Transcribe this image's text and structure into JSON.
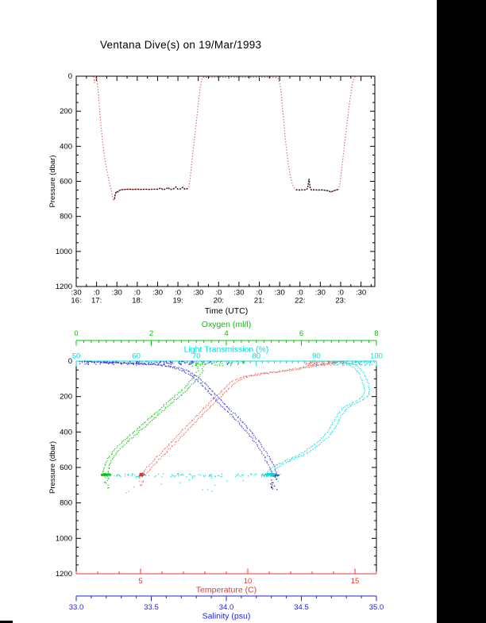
{
  "page": {
    "title": "Ventana Dive(s) on 19/Mar/1993"
  },
  "chart_data": [
    {
      "id": "dive-depth-vs-time",
      "type": "line",
      "title": "Ventana Dive(s) on 19/Mar/1993",
      "xlabel": "Time (UTC)",
      "ylabel": "Pressure (dbar)",
      "x_hours": [
        16.5,
        23.84
      ],
      "x_major_step_hours": 0.5,
      "x_minor_step_hours": 0.25,
      "half_hour_tick_label": ":30",
      "hour_tick_label": ":0",
      "hour_row_labels": [
        [
          16.5,
          "16:"
        ],
        [
          17,
          "17:"
        ],
        [
          18,
          "18:"
        ],
        [
          19,
          "19:"
        ],
        [
          20,
          "20:"
        ],
        [
          21,
          "21:"
        ],
        [
          22,
          "22:"
        ],
        [
          23,
          "23:"
        ]
      ],
      "ylim": [
        0,
        1200
      ],
      "y_major_step": 200,
      "y_minor_step": 50,
      "y_tick_labels": [
        "0",
        "200",
        "400",
        "600",
        "800",
        "1000",
        "1200"
      ],
      "line_color": "#e06868",
      "dark_color": "#2a0c0c",
      "profile_time_pressure": [
        [
          16.93,
          2
        ],
        [
          16.95,
          38
        ],
        [
          16.97,
          12
        ],
        [
          17.0,
          4
        ],
        [
          17.03,
          60
        ],
        [
          17.06,
          150
        ],
        [
          17.1,
          260
        ],
        [
          17.15,
          380
        ],
        [
          17.2,
          470
        ],
        [
          17.26,
          545
        ],
        [
          17.31,
          600
        ],
        [
          17.36,
          650
        ],
        [
          17.4,
          695
        ],
        [
          17.42,
          712
        ],
        [
          17.44,
          700
        ],
        [
          17.46,
          672
        ],
        [
          17.49,
          658
        ],
        [
          17.53,
          660
        ],
        [
          17.56,
          652
        ],
        [
          17.6,
          648
        ],
        [
          17.7,
          646
        ],
        [
          17.8,
          645
        ],
        [
          17.9,
          646
        ],
        [
          18.0,
          645
        ],
        [
          18.1,
          646
        ],
        [
          18.2,
          645
        ],
        [
          18.3,
          646
        ],
        [
          18.4,
          645
        ],
        [
          18.5,
          645
        ],
        [
          18.58,
          638
        ],
        [
          18.62,
          646
        ],
        [
          18.7,
          645
        ],
        [
          18.76,
          635
        ],
        [
          18.8,
          646
        ],
        [
          18.88,
          645
        ],
        [
          18.95,
          632
        ],
        [
          19.0,
          645
        ],
        [
          19.06,
          644
        ],
        [
          19.12,
          634
        ],
        [
          19.17,
          645
        ],
        [
          19.22,
          643
        ],
        [
          19.26,
          640
        ],
        [
          19.3,
          585
        ],
        [
          19.35,
          470
        ],
        [
          19.42,
          330
        ],
        [
          19.49,
          180
        ],
        [
          19.55,
          60
        ],
        [
          19.59,
          14
        ],
        [
          19.62,
          6
        ],
        [
          19.8,
          7
        ],
        [
          20.0,
          6
        ],
        [
          20.2,
          7
        ],
        [
          20.4,
          6
        ],
        [
          20.6,
          7
        ],
        [
          20.8,
          6
        ],
        [
          21.0,
          7
        ],
        [
          21.2,
          6
        ],
        [
          21.4,
          7
        ],
        [
          21.46,
          10
        ],
        [
          21.52,
          60
        ],
        [
          21.58,
          200
        ],
        [
          21.64,
          360
        ],
        [
          21.71,
          500
        ],
        [
          21.78,
          590
        ],
        [
          21.84,
          632
        ],
        [
          21.9,
          648
        ],
        [
          22.0,
          650
        ],
        [
          22.08,
          648
        ],
        [
          22.15,
          649
        ],
        [
          22.19,
          640
        ],
        [
          22.22,
          586
        ],
        [
          22.25,
          636
        ],
        [
          22.28,
          650
        ],
        [
          22.35,
          648
        ],
        [
          22.45,
          650
        ],
        [
          22.55,
          649
        ],
        [
          22.62,
          651
        ],
        [
          22.7,
          654
        ],
        [
          22.76,
          661
        ],
        [
          22.82,
          655
        ],
        [
          22.88,
          650
        ],
        [
          22.94,
          646
        ],
        [
          22.98,
          620
        ],
        [
          23.03,
          520
        ],
        [
          23.09,
          400
        ],
        [
          23.16,
          260
        ],
        [
          23.23,
          130
        ],
        [
          23.29,
          40
        ],
        [
          23.33,
          10
        ],
        [
          23.36,
          2
        ],
        [
          23.42,
          2
        ],
        [
          23.47,
          2
        ]
      ],
      "dark_time_ranges": [
        [
          17.44,
          19.27
        ],
        [
          21.88,
          22.96
        ]
      ]
    },
    {
      "id": "profiles-vs-pressure",
      "type": "scatter",
      "ylabel": "Pressure (dbar)",
      "ylim": [
        0,
        1200
      ],
      "y_major_step": 200,
      "y_minor_step": 50,
      "y_tick_labels": [
        "0",
        "200",
        "400",
        "600",
        "800",
        "1000",
        "1200"
      ],
      "axes": {
        "oxygen": {
          "title": "Oxygen (ml/l)",
          "color": "#00c400",
          "range": [
            0,
            8
          ],
          "major_ticks": [
            0,
            2,
            4,
            6,
            8
          ],
          "tick_labels": [
            "0",
            "2",
            "4",
            "6",
            "8"
          ],
          "minor_step": 0.2
        },
        "light": {
          "title": "Light Transmission (%)",
          "color": "#00dcdc",
          "range": [
            50,
            100
          ],
          "major_ticks": [
            50,
            60,
            70,
            80,
            90,
            100
          ],
          "tick_labels": [
            "50",
            "60",
            "70",
            "80",
            "90",
            "100"
          ],
          "minor_step": 1
        },
        "temp": {
          "title": "Temperature (C)",
          "color": "#ee3333",
          "range": [
            2,
            16
          ],
          "major_ticks": [
            5,
            10,
            15
          ],
          "tick_labels": [
            "5",
            "10",
            "15"
          ],
          "minor_step": 1
        },
        "sal": {
          "title": "Salinity (psu)",
          "color": "#2222dd",
          "range": [
            33,
            35
          ],
          "major_ticks": [
            33,
            33.5,
            34,
            34.5,
            35
          ],
          "tick_labels": [
            "33.0",
            "33.5",
            "34.0",
            "34.5",
            "35.0"
          ],
          "minor_step": 0.1
        }
      },
      "series": [
        {
          "name": "oxygen-profile",
          "axis": "oxygen",
          "color": "#00c400",
          "path": [
            [
              3.32,
              18
            ],
            [
              3.3,
              55
            ],
            [
              3.18,
              95
            ],
            [
              3.02,
              135
            ],
            [
              2.82,
              175
            ],
            [
              2.6,
              215
            ],
            [
              2.38,
              255
            ],
            [
              2.16,
              295
            ],
            [
              1.95,
              335
            ],
            [
              1.74,
              375
            ],
            [
              1.52,
              415
            ],
            [
              1.3,
              455
            ],
            [
              1.1,
              495
            ],
            [
              0.95,
              535
            ],
            [
              0.86,
              570
            ],
            [
              0.8,
              600
            ],
            [
              0.78,
              628
            ],
            [
              0.78,
              648
            ]
          ],
          "clouds": [
            {
              "v": [
                2.9,
                4.55
              ],
              "p": [
                1,
                28
              ],
              "n": 42
            },
            {
              "v": [
                0.74,
                0.87
              ],
              "p": [
                650,
                722
              ],
              "n": 10
            }
          ],
          "clumps": [
            {
              "v": 0.8,
              "v_sd": 0.16,
              "p": 641,
              "p_sd": 9,
              "n": 120
            }
          ]
        },
        {
          "name": "temperature-profile",
          "axis": "temp",
          "color": "#ee6060",
          "path": [
            [
              14.3,
              2
            ],
            [
              13.9,
              10
            ],
            [
              13.3,
              22
            ],
            [
              12.5,
              40
            ],
            [
              11.5,
              58
            ],
            [
              10.6,
              72
            ],
            [
              9.9,
              88
            ],
            [
              9.45,
              110
            ],
            [
              9.1,
              145
            ],
            [
              8.8,
              180
            ],
            [
              8.5,
              215
            ],
            [
              8.2,
              252
            ],
            [
              7.9,
              288
            ],
            [
              7.6,
              325
            ],
            [
              7.3,
              362
            ],
            [
              7.0,
              400
            ],
            [
              6.7,
              438
            ],
            [
              6.4,
              476
            ],
            [
              6.1,
              514
            ],
            [
              5.8,
              550
            ],
            [
              5.55,
              582
            ],
            [
              5.35,
              608
            ],
            [
              5.2,
              632
            ],
            [
              5.12,
              650
            ]
          ],
          "clouds": [
            {
              "v": [
                12.7,
                14.5
              ],
              "p": [
                1,
                24
              ],
              "n": 55
            },
            {
              "v": [
                4.95,
                5.15
              ],
              "p": [
                650,
                714
              ],
              "n": 10
            }
          ],
          "clumps": [
            {
              "v": 5.05,
              "v_sd": 0.15,
              "p": 641,
              "p_sd": 10,
              "n": 130,
              "color": "#e03030"
            }
          ]
        },
        {
          "name": "salinity-profile",
          "axis": "sal",
          "color": "#2828dd",
          "path": [
            [
              33.06,
              3
            ],
            [
              33.18,
              7
            ],
            [
              33.32,
              11
            ],
            [
              33.46,
              16
            ],
            [
              33.58,
              24
            ],
            [
              33.67,
              38
            ],
            [
              33.74,
              60
            ],
            [
              33.79,
              88
            ],
            [
              33.84,
              122
            ],
            [
              33.88,
              158
            ],
            [
              33.92,
              195
            ],
            [
              33.96,
              232
            ],
            [
              34.0,
              268
            ],
            [
              34.05,
              305
            ],
            [
              34.09,
              342
            ],
            [
              34.13,
              380
            ],
            [
              34.17,
              420
            ],
            [
              34.21,
              462
            ],
            [
              34.24,
              502
            ],
            [
              34.27,
              540
            ],
            [
              34.29,
              575
            ],
            [
              34.31,
              608
            ],
            [
              34.32,
              638
            ],
            [
              34.32,
              652
            ]
          ],
          "clouds": [
            {
              "v": [
                33.02,
                33.8
              ],
              "p": [
                1,
                20
              ],
              "n": 95
            },
            {
              "v": [
                33.8,
                34.05
              ],
              "p": [
                2,
                16
              ],
              "n": 8
            },
            {
              "v": [
                34.29,
                34.34
              ],
              "p": [
                650,
                728
              ],
              "n": 14,
              "color": "#000066"
            }
          ],
          "clumps": [
            {
              "v": 34.31,
              "v_sd": 0.045,
              "p": 641,
              "p_sd": 9,
              "n": 130
            },
            {
              "v": 34.315,
              "v_sd": 0.02,
              "p": 645,
              "p_sd": 6,
              "n": 40,
              "color": "#000066"
            }
          ]
        },
        {
          "name": "light-transmission-profile",
          "axis": "light",
          "color": "#00dcdc",
          "path": [
            [
              94.8,
              4
            ],
            [
              95.6,
              14
            ],
            [
              96.4,
              30
            ],
            [
              97.1,
              52
            ],
            [
              97.6,
              78
            ],
            [
              98.0,
              108
            ],
            [
              98.3,
              140
            ],
            [
              98.45,
              170
            ],
            [
              98.2,
              198
            ],
            [
              97.3,
              222
            ],
            [
              96.0,
              242
            ],
            [
              94.9,
              262
            ],
            [
              94.3,
              285
            ],
            [
              93.8,
              310
            ],
            [
              93.3,
              338
            ],
            [
              92.9,
              365
            ],
            [
              92.4,
              392
            ],
            [
              91.8,
              418
            ],
            [
              91.0,
              444
            ],
            [
              90.2,
              468
            ],
            [
              89.3,
              492
            ],
            [
              88.2,
              516
            ],
            [
              86.8,
              540
            ],
            [
              85.3,
              562
            ],
            [
              83.9,
              584
            ],
            [
              82.8,
              606
            ],
            [
              82.2,
              628
            ],
            [
              82.0,
              648
            ]
          ],
          "clouds": [
            {
              "v": [
                92.5,
                99.7
              ],
              "p": [
                1,
                24
              ],
              "n": 55
            },
            {
              "v": [
                54.5,
                84
              ],
              "p": [
                636,
                654
              ],
              "n": 120
            },
            {
              "v": [
                58,
                84
              ],
              "p": [
                656,
                745
              ],
              "n": 16
            }
          ],
          "clumps": [
            {
              "v": 82.3,
              "v_sd": 1.1,
              "p": 640,
              "p_sd": 8,
              "n": 150
            }
          ]
        }
      ]
    }
  ]
}
